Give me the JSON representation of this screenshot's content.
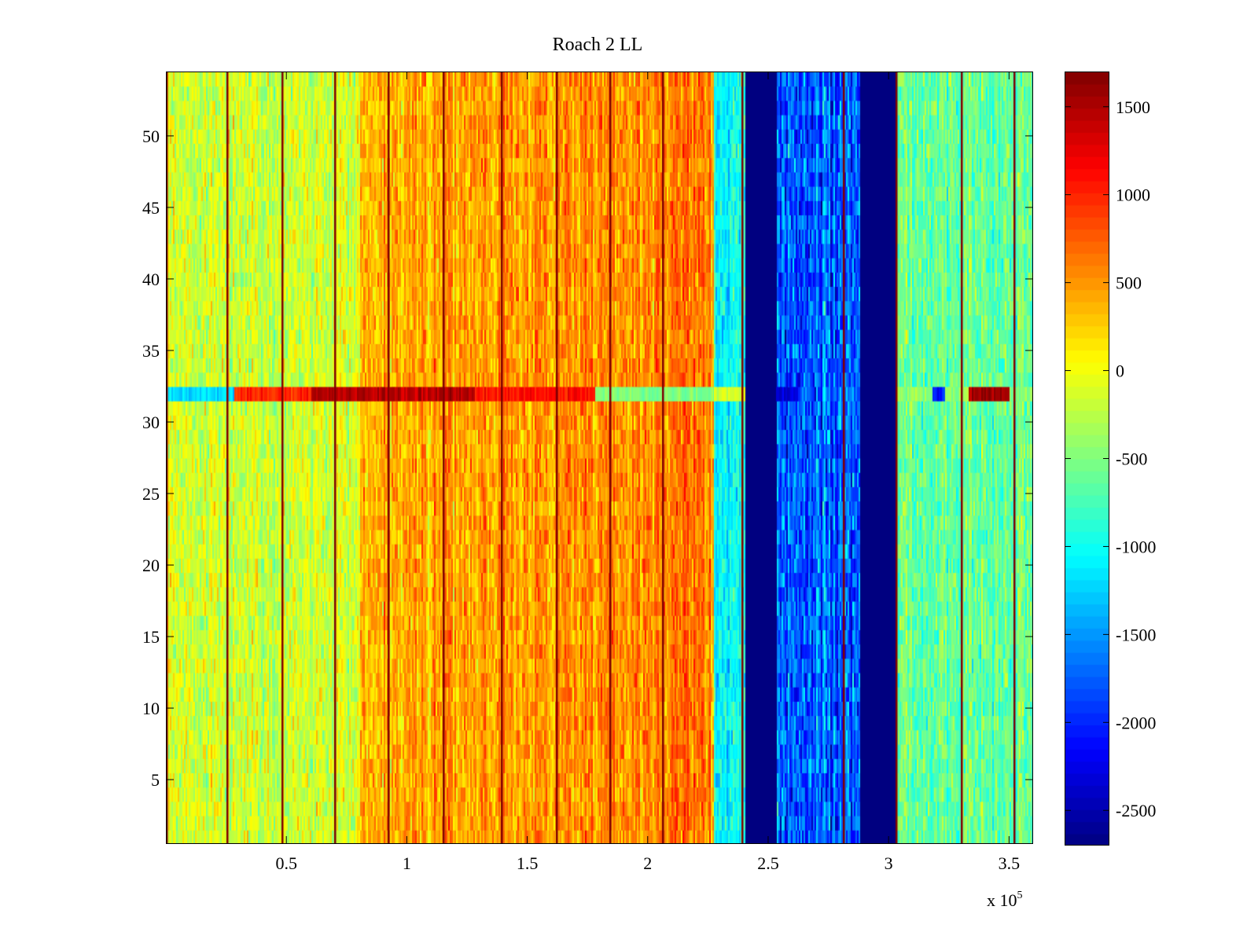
{
  "chart_data": {
    "type": "heatmap",
    "title": "Roach 2 LL",
    "xlabel": "",
    "ylabel": "",
    "xlim": [
      0,
      3.6
    ],
    "ylim": [
      0.5,
      54.5
    ],
    "x_ticks": [
      0.5,
      1,
      1.5,
      2,
      2.5,
      3,
      3.5
    ],
    "x_tick_labels": [
      "0.5",
      "1",
      "1.5",
      "2",
      "2.5",
      "3",
      "3.5"
    ],
    "x_exponent_base": "x 10",
    "x_exponent_power": "5",
    "y_ticks": [
      5,
      10,
      15,
      20,
      25,
      30,
      35,
      40,
      45,
      50
    ],
    "y_tick_labels": [
      "5",
      "10",
      "15",
      "20",
      "25",
      "30",
      "35",
      "40",
      "45",
      "50"
    ],
    "colormap": "jet",
    "clim": [
      -2700,
      1700
    ],
    "colorbar_ticks": [
      1500,
      1000,
      500,
      0,
      -500,
      -1000,
      -1500,
      -2000,
      -2500
    ],
    "colorbar_tick_labels": [
      "1500",
      "1000",
      "500",
      "0",
      "-500",
      "-1000",
      "-1500",
      "-2000",
      "-2500"
    ],
    "rows": 54,
    "regions": [
      {
        "x_from": 0.0,
        "x_to": 0.8,
        "mean": -150,
        "desc": "yellow-green band"
      },
      {
        "x_from": 0.8,
        "x_to": 2.27,
        "mean": 400,
        "desc": "orange band, rising toward 2.2"
      },
      {
        "x_from": 2.27,
        "x_to": 2.4,
        "mean": -1000,
        "desc": "cyan band"
      },
      {
        "x_from": 2.4,
        "x_to": 2.53,
        "mean": -2700,
        "desc": "dark blue gap"
      },
      {
        "x_from": 2.53,
        "x_to": 2.88,
        "mean": -1700,
        "desc": "blue band"
      },
      {
        "x_from": 2.88,
        "x_to": 3.03,
        "mean": -2700,
        "desc": "dark blue gap"
      },
      {
        "x_from": 3.03,
        "x_to": 3.6,
        "mean": -600,
        "desc": "green band"
      }
    ],
    "vertical_lines_x": [
      0.0,
      0.25,
      0.48,
      0.7,
      0.92,
      1.15,
      1.39,
      1.62,
      1.84,
      2.06,
      2.39,
      2.81,
      3.03,
      3.3,
      3.52
    ],
    "highlight_row": {
      "y": 32,
      "segments": [
        {
          "x_from": 0.0,
          "x_to": 0.28,
          "value": -1200
        },
        {
          "x_from": 0.28,
          "x_to": 0.6,
          "value": 1000
        },
        {
          "x_from": 0.6,
          "x_to": 1.28,
          "value": 1450
        },
        {
          "x_from": 1.28,
          "x_to": 1.78,
          "value": 1100
        },
        {
          "x_from": 1.78,
          "x_to": 2.27,
          "value": -500
        },
        {
          "x_from": 2.27,
          "x_to": 2.4,
          "value": -100
        },
        {
          "x_from": 2.53,
          "x_to": 2.62,
          "value": -2300
        },
        {
          "x_from": 3.03,
          "x_to": 3.18,
          "value": -400
        },
        {
          "x_from": 3.18,
          "x_to": 3.23,
          "value": -2000
        },
        {
          "x_from": 3.23,
          "x_to": 3.33,
          "value": -400
        },
        {
          "x_from": 3.33,
          "x_to": 3.5,
          "value": 1550
        },
        {
          "x_from": 3.5,
          "x_to": 3.6,
          "value": -500
        }
      ]
    }
  }
}
